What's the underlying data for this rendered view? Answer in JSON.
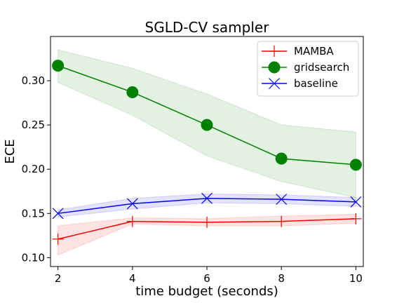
{
  "chart_data": {
    "type": "line",
    "title": "SGLD-CV sampler",
    "xlabel": "time budget (seconds)",
    "ylabel": "ECE",
    "x": [
      2,
      4,
      6,
      8,
      10
    ],
    "xlim": [
      1.8,
      10.2
    ],
    "ylim": [
      0.09,
      0.35
    ],
    "xticks": [
      2,
      4,
      6,
      8,
      10
    ],
    "yticks": [
      0.1,
      0.15,
      0.2,
      0.25,
      0.3
    ],
    "ytick_labels": [
      "0.10",
      "0.15",
      "0.20",
      "0.25",
      "0.30"
    ],
    "grid": false,
    "legend_position": "top-right",
    "series": [
      {
        "name": "MAMBA",
        "color": "#ff0000",
        "marker": "plus",
        "values": [
          0.121,
          0.141,
          0.14,
          0.141,
          0.144
        ],
        "lower": [
          0.103,
          0.138,
          0.136,
          0.136,
          0.139
        ],
        "upper": [
          0.136,
          0.145,
          0.144,
          0.147,
          0.149
        ]
      },
      {
        "name": "gridsearch",
        "color": "#008000",
        "marker": "circle",
        "values": [
          0.317,
          0.287,
          0.25,
          0.212,
          0.205
        ],
        "lower": [
          0.298,
          0.261,
          0.215,
          0.186,
          0.168
        ],
        "upper": [
          0.335,
          0.314,
          0.285,
          0.25,
          0.242
        ]
      },
      {
        "name": "baseline",
        "color": "#0000ff",
        "marker": "x",
        "values": [
          0.15,
          0.161,
          0.167,
          0.166,
          0.163
        ],
        "lower": [
          0.146,
          0.155,
          0.162,
          0.161,
          0.158
        ],
        "upper": [
          0.154,
          0.167,
          0.172,
          0.171,
          0.168
        ]
      }
    ]
  }
}
